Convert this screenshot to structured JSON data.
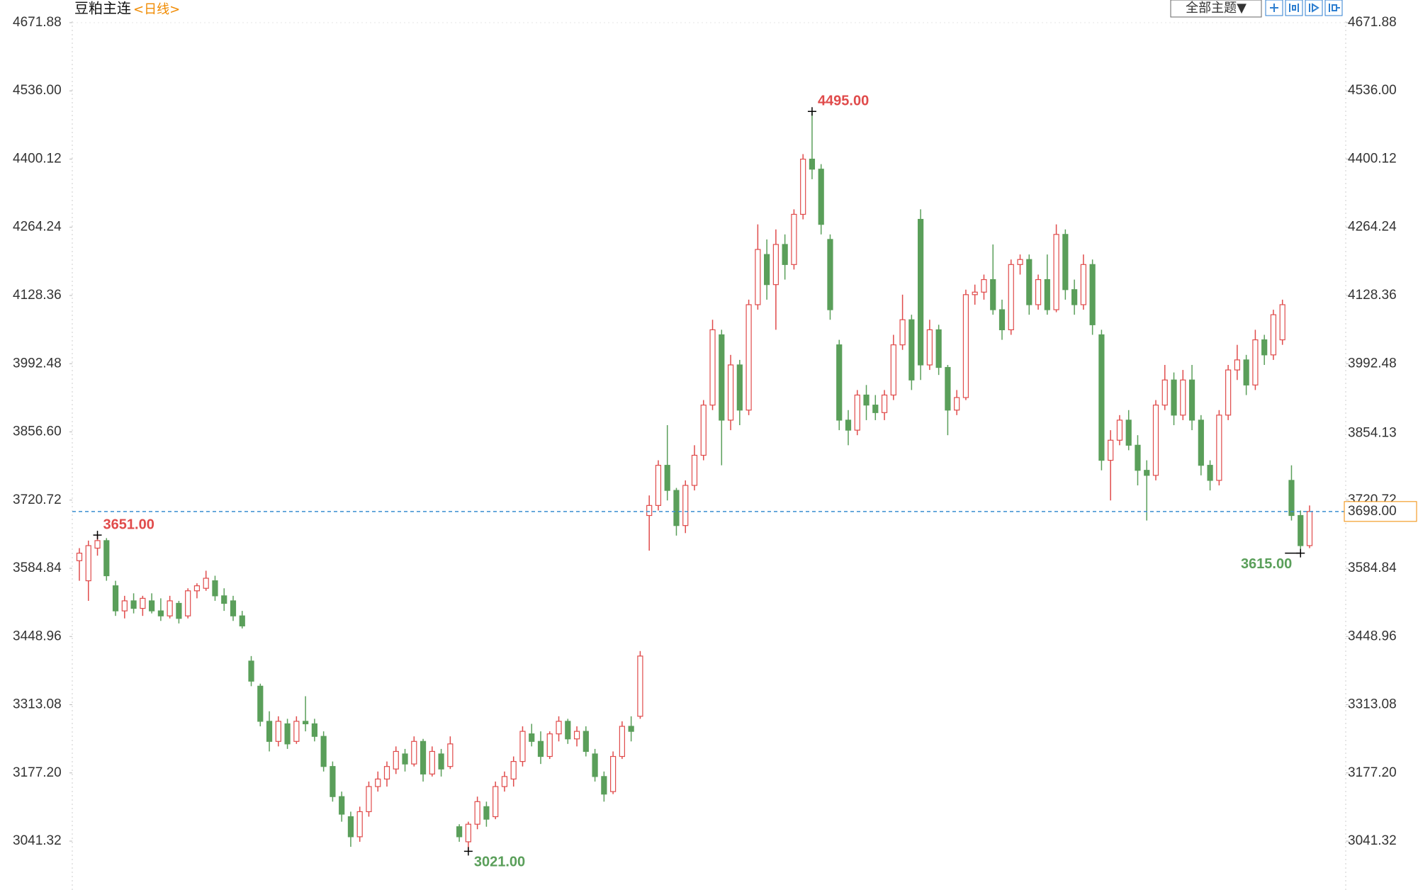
{
  "chart_data": {
    "type": "candlestick",
    "title": "豆粕主连",
    "period": "<日线>",
    "theme_button": "全部主题▼",
    "up_color": "#e04b4b",
    "down_color": "#5a9f5a",
    "ylim": [
      2951,
      4681
    ],
    "yticks": [
      4671.88,
      {
        "value": 4536,
        "label": "4536.00"
      },
      4400.12,
      4264.24,
      4128.36,
      3992.48,
      {
        "value": 3856.6,
        "label": "3856.60"
      },
      3720.72,
      3584.84,
      3448.96,
      3313.08,
      {
        "value": 3177.2,
        "label": "3177.20"
      },
      3041.32
    ],
    "last_price": {
      "value": 3698,
      "label": "3698.00"
    },
    "cursor_price": {
      "value": 3854.13,
      "label": "3854.13"
    },
    "annotations": [
      {
        "value": 3651,
        "label": "3651.00"
      },
      {
        "value": 4495,
        "label": "4495.00"
      },
      {
        "value": 3021,
        "label": "3021.00"
      },
      {
        "value": 3615,
        "label": "3615.00"
      }
    ],
    "candles": [
      [
        3600,
        3625,
        3560,
        3615
      ],
      [
        3560,
        3640,
        3520,
        3630
      ],
      [
        3625,
        3651,
        3610,
        3640
      ],
      [
        3640,
        3645,
        3560,
        3570
      ],
      [
        3550,
        3560,
        3490,
        3500
      ],
      [
        3500,
        3530,
        3485,
        3520
      ],
      [
        3520,
        3535,
        3495,
        3505
      ],
      [
        3505,
        3530,
        3490,
        3525
      ],
      [
        3520,
        3535,
        3495,
        3500
      ],
      [
        3500,
        3525,
        3480,
        3490
      ],
      [
        3490,
        3530,
        3485,
        3520
      ],
      [
        3515,
        3520,
        3475,
        3485
      ],
      [
        3490,
        3545,
        3485,
        3540
      ],
      [
        3540,
        3555,
        3525,
        3550
      ],
      [
        3545,
        3580,
        3540,
        3565
      ],
      [
        3560,
        3570,
        3520,
        3530
      ],
      [
        3530,
        3545,
        3500,
        3515
      ],
      [
        3520,
        3530,
        3480,
        3490
      ],
      [
        3490,
        3500,
        3465,
        3470
      ],
      [
        3400,
        3410,
        3350,
        3360
      ],
      [
        3350,
        3355,
        3270,
        3280
      ],
      [
        3280,
        3300,
        3220,
        3240
      ],
      [
        3240,
        3290,
        3230,
        3280
      ],
      [
        3275,
        3285,
        3225,
        3235
      ],
      [
        3240,
        3290,
        3235,
        3280
      ],
      [
        3280,
        3330,
        3260,
        3275
      ],
      [
        3275,
        3285,
        3240,
        3250
      ],
      [
        3250,
        3260,
        3180,
        3190
      ],
      [
        3190,
        3200,
        3120,
        3130
      ],
      [
        3130,
        3140,
        3080,
        3095
      ],
      [
        3090,
        3100,
        3030,
        3050
      ],
      [
        3050,
        3110,
        3040,
        3100
      ],
      [
        3100,
        3160,
        3090,
        3150
      ],
      [
        3150,
        3180,
        3140,
        3165
      ],
      [
        3165,
        3200,
        3150,
        3190
      ],
      [
        3185,
        3230,
        3175,
        3220
      ],
      [
        3215,
        3225,
        3180,
        3195
      ],
      [
        3195,
        3250,
        3190,
        3240
      ],
      [
        3240,
        3245,
        3160,
        3175
      ],
      [
        3175,
        3230,
        3170,
        3220
      ],
      [
        3215,
        3225,
        3170,
        3185
      ],
      [
        3190,
        3250,
        3185,
        3235
      ],
      [
        3070,
        3075,
        3040,
        3050
      ],
      [
        3040,
        3080,
        3021,
        3075
      ],
      [
        3075,
        3130,
        3065,
        3120
      ],
      [
        3110,
        3120,
        3070,
        3085
      ],
      [
        3090,
        3160,
        3085,
        3150
      ],
      [
        3150,
        3180,
        3140,
        3170
      ],
      [
        3165,
        3210,
        3150,
        3200
      ],
      [
        3200,
        3270,
        3190,
        3260
      ],
      [
        3255,
        3275,
        3230,
        3240
      ],
      [
        3240,
        3260,
        3195,
        3210
      ],
      [
        3210,
        3260,
        3205,
        3255
      ],
      [
        3255,
        3290,
        3240,
        3280
      ],
      [
        3280,
        3285,
        3235,
        3245
      ],
      [
        3245,
        3270,
        3230,
        3260
      ],
      [
        3260,
        3270,
        3210,
        3220
      ],
      [
        3215,
        3225,
        3160,
        3170
      ],
      [
        3170,
        3180,
        3120,
        3135
      ],
      [
        3140,
        3220,
        3135,
        3210
      ],
      [
        3210,
        3280,
        3205,
        3270
      ],
      [
        3270,
        3290,
        3240,
        3260
      ],
      [
        3290,
        3420,
        3285,
        3410
      ],
      [
        3690,
        3730,
        3620,
        3710
      ],
      [
        3710,
        3800,
        3700,
        3790
      ],
      [
        3790,
        3870,
        3720,
        3740
      ],
      [
        3740,
        3745,
        3650,
        3670
      ],
      [
        3670,
        3760,
        3655,
        3750
      ],
      [
        3750,
        3830,
        3740,
        3810
      ],
      [
        3810,
        3920,
        3800,
        3910
      ],
      [
        3910,
        4080,
        3900,
        4060
      ],
      [
        4050,
        4060,
        3790,
        3880
      ],
      [
        3880,
        4010,
        3860,
        3990
      ],
      [
        3990,
        4000,
        3870,
        3900
      ],
      [
        3900,
        4120,
        3890,
        4110
      ],
      [
        4110,
        4270,
        4100,
        4220
      ],
      [
        4210,
        4240,
        4120,
        4150
      ],
      [
        4150,
        4260,
        4060,
        4230
      ],
      [
        4230,
        4250,
        4160,
        4190
      ],
      [
        4190,
        4300,
        4180,
        4290
      ],
      [
        4290,
        4410,
        4280,
        4400
      ],
      [
        4400,
        4495,
        4360,
        4380
      ],
      [
        4380,
        4390,
        4250,
        4270
      ],
      [
        4240,
        4250,
        4080,
        4100
      ],
      [
        4030,
        4040,
        3860,
        3880
      ],
      [
        3880,
        3900,
        3830,
        3860
      ],
      [
        3860,
        3940,
        3850,
        3930
      ],
      [
        3930,
        3950,
        3880,
        3910
      ],
      [
        3910,
        3930,
        3880,
        3895
      ],
      [
        3895,
        3940,
        3880,
        3930
      ],
      [
        3930,
        4050,
        3920,
        4030
      ],
      [
        4030,
        4130,
        4020,
        4080
      ],
      [
        4080,
        4090,
        3940,
        3960
      ],
      [
        4280,
        4300,
        3960,
        3990
      ],
      [
        3990,
        4080,
        3980,
        4060
      ],
      [
        4060,
        4070,
        3970,
        3985
      ],
      [
        3985,
        3990,
        3850,
        3900
      ],
      [
        3900,
        3940,
        3890,
        3925
      ],
      [
        3925,
        4140,
        3920,
        4130
      ],
      [
        4130,
        4150,
        4110,
        4135
      ],
      [
        4135,
        4170,
        4120,
        4160
      ],
      [
        4160,
        4230,
        4090,
        4100
      ],
      [
        4100,
        4120,
        4040,
        4060
      ],
      [
        4060,
        4200,
        4050,
        4190
      ],
      [
        4190,
        4210,
        4170,
        4200
      ],
      [
        4200,
        4210,
        4090,
        4110
      ],
      [
        4110,
        4170,
        4100,
        4160
      ],
      [
        4160,
        4210,
        4090,
        4100
      ],
      [
        4100,
        4270,
        4095,
        4250
      ],
      [
        4250,
        4260,
        4120,
        4140
      ],
      [
        4140,
        4160,
        4090,
        4110
      ],
      [
        4110,
        4210,
        4100,
        4190
      ],
      [
        4190,
        4200,
        4050,
        4070
      ],
      [
        4050,
        4060,
        3780,
        3800
      ],
      [
        3800,
        3860,
        3720,
        3840
      ],
      [
        3840,
        3890,
        3830,
        3880
      ],
      [
        3880,
        3900,
        3820,
        3830
      ],
      [
        3830,
        3850,
        3750,
        3780
      ],
      [
        3780,
        3800,
        3680,
        3770
      ],
      [
        3770,
        3920,
        3760,
        3910
      ],
      [
        3910,
        3990,
        3900,
        3960
      ],
      [
        3960,
        3975,
        3870,
        3890
      ],
      [
        3890,
        3980,
        3880,
        3960
      ],
      [
        3960,
        3990,
        3860,
        3880
      ],
      [
        3880,
        3890,
        3770,
        3790
      ],
      [
        3790,
        3800,
        3740,
        3760
      ],
      [
        3760,
        3900,
        3750,
        3890
      ],
      [
        3890,
        3990,
        3880,
        3980
      ],
      [
        3980,
        4030,
        3960,
        4000
      ],
      [
        4000,
        4010,
        3930,
        3950
      ],
      [
        3950,
        4060,
        3940,
        4040
      ],
      [
        4040,
        4050,
        3990,
        4010
      ],
      [
        4010,
        4100,
        4000,
        4090
      ],
      [
        4040,
        4120,
        4030,
        4110
      ],
      [
        3760,
        3790,
        3680,
        3690
      ],
      [
        3690,
        3700,
        3615,
        3630
      ],
      [
        3630,
        3710,
        3625,
        3698
      ]
    ]
  }
}
